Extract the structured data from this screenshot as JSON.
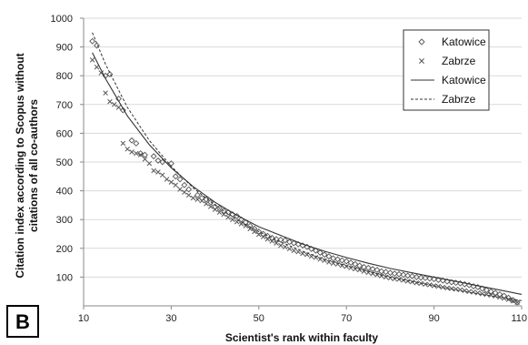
{
  "chart_data": {
    "type": "scatter",
    "panel_label": "B",
    "title": "",
    "xlabel": "Scientist's rank within faculty",
    "ylabel_lines": [
      "Citation index according to Scopus without",
      "citations of all co-authors"
    ],
    "xlim": [
      10,
      110
    ],
    "ylim": [
      0,
      1000
    ],
    "xticks": [
      10,
      30,
      50,
      70,
      90,
      110
    ],
    "yticks": [
      100,
      200,
      300,
      400,
      500,
      600,
      700,
      800,
      900,
      1000
    ],
    "grid": "horizontal",
    "legend_position": "top-right",
    "series": [
      {
        "name": "Katowice",
        "kind": "markers",
        "marker": "diamond",
        "points": [
          [
            12,
            920
          ],
          [
            13,
            905
          ],
          [
            15,
            800
          ],
          [
            16,
            805
          ],
          [
            18,
            720
          ],
          [
            19,
            680
          ],
          [
            21,
            575
          ],
          [
            22,
            565
          ],
          [
            23,
            530
          ],
          [
            24,
            525
          ],
          [
            26,
            520
          ],
          [
            27,
            505
          ],
          [
            28,
            500
          ],
          [
            30,
            495
          ],
          [
            31,
            450
          ],
          [
            32,
            440
          ],
          [
            33,
            420
          ],
          [
            34,
            405
          ],
          [
            36,
            385
          ],
          [
            37,
            375
          ],
          [
            38,
            370
          ],
          [
            39,
            360
          ],
          [
            40,
            345
          ],
          [
            41,
            340
          ],
          [
            42,
            330
          ],
          [
            43,
            325
          ],
          [
            44,
            318
          ],
          [
            45,
            312
          ],
          [
            46,
            300
          ],
          [
            47,
            290
          ],
          [
            48,
            278
          ],
          [
            49,
            268
          ],
          [
            50,
            258
          ],
          [
            51,
            250
          ],
          [
            52,
            243
          ],
          [
            53,
            236
          ],
          [
            54,
            232
          ],
          [
            55,
            230
          ],
          [
            56,
            228
          ],
          [
            57,
            222
          ],
          [
            58,
            218
          ],
          [
            59,
            214
          ],
          [
            60,
            210
          ],
          [
            61,
            205
          ],
          [
            62,
            198
          ],
          [
            63,
            192
          ],
          [
            64,
            185
          ],
          [
            65,
            178
          ],
          [
            66,
            172
          ],
          [
            67,
            165
          ],
          [
            68,
            162
          ],
          [
            69,
            158
          ],
          [
            70,
            155
          ],
          [
            71,
            150
          ],
          [
            72,
            145
          ],
          [
            73,
            140
          ],
          [
            74,
            135
          ],
          [
            75,
            132
          ],
          [
            76,
            128
          ],
          [
            77,
            125
          ],
          [
            78,
            120
          ],
          [
            79,
            118
          ],
          [
            80,
            115
          ],
          [
            81,
            112
          ],
          [
            82,
            110
          ],
          [
            83,
            108
          ],
          [
            84,
            105
          ],
          [
            85,
            103
          ],
          [
            86,
            100
          ],
          [
            87,
            98
          ],
          [
            88,
            97
          ],
          [
            89,
            95
          ],
          [
            90,
            93
          ],
          [
            91,
            90
          ],
          [
            92,
            88
          ],
          [
            93,
            85
          ],
          [
            94,
            82
          ],
          [
            95,
            80
          ],
          [
            96,
            78
          ],
          [
            97,
            75
          ],
          [
            98,
            72
          ],
          [
            99,
            68
          ],
          [
            100,
            65
          ],
          [
            101,
            60
          ],
          [
            102,
            55
          ],
          [
            103,
            50
          ],
          [
            104,
            45
          ],
          [
            105,
            40
          ],
          [
            106,
            35
          ],
          [
            107,
            28
          ],
          [
            108,
            20
          ],
          [
            109,
            12
          ]
        ]
      },
      {
        "name": "Zabrze",
        "kind": "markers",
        "marker": "x",
        "points": [
          [
            12,
            855
          ],
          [
            13,
            830
          ],
          [
            14,
            810
          ],
          [
            15,
            740
          ],
          [
            16,
            710
          ],
          [
            17,
            700
          ],
          [
            18,
            690
          ],
          [
            19,
            565
          ],
          [
            20,
            545
          ],
          [
            21,
            535
          ],
          [
            22,
            530
          ],
          [
            23,
            525
          ],
          [
            24,
            510
          ],
          [
            25,
            495
          ],
          [
            26,
            470
          ],
          [
            27,
            465
          ],
          [
            28,
            455
          ],
          [
            29,
            440
          ],
          [
            30,
            430
          ],
          [
            31,
            420
          ],
          [
            32,
            405
          ],
          [
            33,
            395
          ],
          [
            34,
            385
          ],
          [
            35,
            375
          ],
          [
            36,
            370
          ],
          [
            37,
            365
          ],
          [
            38,
            355
          ],
          [
            39,
            345
          ],
          [
            40,
            335
          ],
          [
            41,
            325
          ],
          [
            42,
            318
          ],
          [
            43,
            308
          ],
          [
            44,
            300
          ],
          [
            45,
            292
          ],
          [
            46,
            285
          ],
          [
            47,
            278
          ],
          [
            48,
            268
          ],
          [
            49,
            258
          ],
          [
            50,
            248
          ],
          [
            51,
            240
          ],
          [
            52,
            232
          ],
          [
            53,
            225
          ],
          [
            54,
            218
          ],
          [
            55,
            210
          ],
          [
            56,
            205
          ],
          [
            57,
            198
          ],
          [
            58,
            192
          ],
          [
            59,
            188
          ],
          [
            60,
            182
          ],
          [
            61,
            178
          ],
          [
            62,
            172
          ],
          [
            63,
            168
          ],
          [
            64,
            162
          ],
          [
            65,
            158
          ],
          [
            66,
            152
          ],
          [
            67,
            148
          ],
          [
            68,
            145
          ],
          [
            69,
            140
          ],
          [
            70,
            137
          ],
          [
            71,
            132
          ],
          [
            72,
            128
          ],
          [
            73,
            125
          ],
          [
            74,
            120
          ],
          [
            75,
            116
          ],
          [
            76,
            112
          ],
          [
            77,
            108
          ],
          [
            78,
            104
          ],
          [
            79,
            100
          ],
          [
            80,
            97
          ],
          [
            81,
            94
          ],
          [
            82,
            92
          ],
          [
            83,
            89
          ],
          [
            84,
            86
          ],
          [
            85,
            83
          ],
          [
            86,
            80
          ],
          [
            87,
            78
          ],
          [
            88,
            75
          ],
          [
            89,
            73
          ],
          [
            90,
            70
          ],
          [
            91,
            68
          ],
          [
            92,
            65
          ],
          [
            93,
            62
          ],
          [
            94,
            60
          ],
          [
            95,
            58
          ],
          [
            96,
            56
          ],
          [
            97,
            53
          ],
          [
            98,
            50
          ],
          [
            99,
            48
          ],
          [
            100,
            45
          ],
          [
            101,
            42
          ],
          [
            102,
            40
          ],
          [
            103,
            37
          ],
          [
            104,
            34
          ],
          [
            105,
            30
          ],
          [
            106,
            26
          ],
          [
            107,
            22
          ],
          [
            108,
            17
          ],
          [
            109,
            12
          ]
        ]
      },
      {
        "name": "Katowice",
        "kind": "line",
        "dash": "solid",
        "points": [
          [
            12,
            880
          ],
          [
            15,
            790
          ],
          [
            20,
            660
          ],
          [
            25,
            560
          ],
          [
            30,
            480
          ],
          [
            35,
            415
          ],
          [
            40,
            360
          ],
          [
            45,
            315
          ],
          [
            50,
            275
          ],
          [
            55,
            245
          ],
          [
            60,
            215
          ],
          [
            65,
            190
          ],
          [
            70,
            168
          ],
          [
            75,
            148
          ],
          [
            80,
            130
          ],
          [
            85,
            115
          ],
          [
            90,
            100
          ],
          [
            95,
            85
          ],
          [
            100,
            70
          ],
          [
            105,
            55
          ],
          [
            110,
            40
          ]
        ]
      },
      {
        "name": "Zabrze",
        "kind": "line",
        "dash": "dashed",
        "points": [
          [
            12,
            950
          ],
          [
            15,
            840
          ],
          [
            20,
            690
          ],
          [
            25,
            575
          ],
          [
            30,
            485
          ],
          [
            35,
            410
          ],
          [
            40,
            350
          ],
          [
            45,
            300
          ],
          [
            50,
            258
          ],
          [
            55,
            222
          ],
          [
            60,
            190
          ],
          [
            65,
            162
          ],
          [
            70,
            140
          ],
          [
            75,
            120
          ],
          [
            80,
            100
          ],
          [
            85,
            85
          ],
          [
            90,
            70
          ],
          [
            95,
            55
          ],
          [
            100,
            42
          ],
          [
            105,
            30
          ],
          [
            110,
            18
          ]
        ]
      }
    ]
  },
  "colors": {
    "marker": "#555555",
    "line": "#333333",
    "grid": "#d9d9d9",
    "axis": "#888888"
  }
}
